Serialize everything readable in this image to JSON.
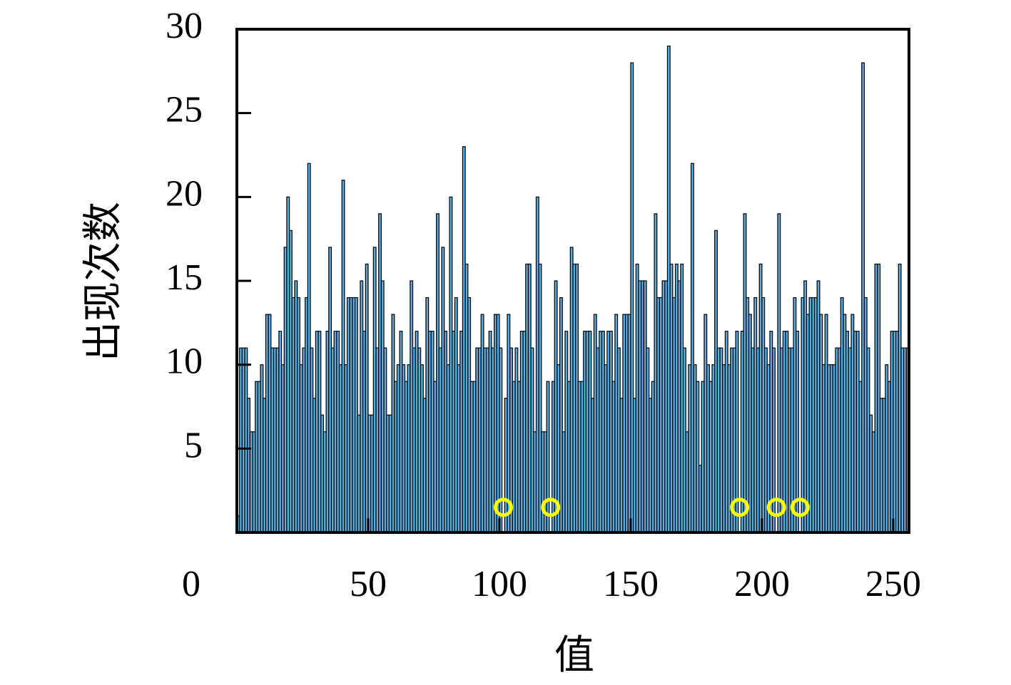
{
  "chart_data": {
    "type": "histogram",
    "x_label": "值",
    "y_label": "出现次数",
    "bins": [
      0,
      1,
      2,
      3,
      4,
      5,
      6,
      7,
      8,
      9,
      10,
      11,
      12,
      13,
      14,
      15,
      16,
      17,
      18,
      19,
      20,
      21,
      22,
      23,
      24,
      25,
      26,
      27,
      28,
      29,
      30,
      31,
      32,
      33,
      34,
      35,
      36,
      37,
      38,
      39,
      40,
      41,
      42,
      43,
      44,
      45,
      46,
      47,
      48,
      49,
      50,
      51,
      52,
      53,
      54,
      55,
      56,
      57,
      58,
      59,
      60,
      61,
      62,
      63,
      64,
      65,
      66,
      67,
      68,
      69,
      70,
      71,
      72,
      73,
      74,
      75,
      76,
      77,
      78,
      79,
      80,
      81,
      82,
      83,
      84,
      85,
      86,
      87,
      88,
      89,
      90,
      91,
      92,
      93,
      94,
      95,
      96,
      97,
      98,
      99,
      100,
      101,
      102,
      103,
      104,
      105,
      106,
      107,
      108,
      109,
      110,
      111,
      112,
      113,
      114,
      115,
      116,
      117,
      118,
      119,
      120,
      121,
      122,
      123,
      124,
      125,
      126,
      127,
      128,
      129,
      130,
      131,
      132,
      133,
      134,
      135,
      136,
      137,
      138,
      139,
      140,
      141,
      142,
      143,
      144,
      145,
      146,
      147,
      148,
      149,
      150,
      151,
      152,
      153,
      154,
      155,
      156,
      157,
      158,
      159,
      160,
      161,
      162,
      163,
      164,
      165,
      166,
      167,
      168,
      169,
      170,
      171,
      172,
      173,
      174,
      175,
      176,
      177,
      178,
      179,
      180,
      181,
      182,
      183,
      184,
      185,
      186,
      187,
      188,
      189,
      190,
      191,
      192,
      193,
      194,
      195,
      196,
      197,
      198,
      199,
      200,
      201,
      202,
      203,
      204,
      205,
      206,
      207,
      208,
      209,
      210,
      211,
      212,
      213,
      214,
      215,
      216,
      217,
      218,
      219,
      220,
      221,
      222,
      223,
      224,
      225,
      226,
      227,
      228,
      229,
      230,
      231,
      232,
      233,
      234,
      235,
      236,
      237,
      238,
      239,
      240,
      241,
      242,
      243,
      244,
      245,
      246,
      247,
      248,
      249,
      250,
      251,
      252,
      253,
      254,
      255,
      256
    ],
    "values": [
      1,
      11,
      11,
      11,
      8,
      6,
      6,
      9,
      9,
      10,
      8,
      13,
      13,
      11,
      11,
      11,
      12,
      10,
      17,
      20,
      18,
      14,
      15,
      14,
      10,
      11,
      14,
      22,
      11,
      8,
      12,
      12,
      7,
      6,
      12,
      17,
      11,
      12,
      12,
      10,
      21,
      10,
      14,
      14,
      14,
      14,
      7,
      15,
      12,
      16,
      7,
      7,
      17,
      11,
      19,
      15,
      11,
      7,
      7,
      13,
      9,
      10,
      12,
      10,
      9,
      10,
      15,
      11,
      12,
      11,
      10,
      8,
      14,
      12,
      12,
      9,
      19,
      11,
      17,
      12,
      10,
      20,
      12,
      14,
      10,
      12,
      23,
      16,
      14,
      9,
      9,
      11,
      11,
      13,
      11,
      11,
      12,
      11,
      13,
      13,
      11,
      0,
      8,
      13,
      11,
      9,
      11,
      9,
      12,
      12,
      16,
      16,
      11,
      6,
      20,
      16,
      6,
      6,
      9,
      0,
      9,
      15,
      10,
      14,
      6,
      12,
      9,
      17,
      16,
      16,
      9,
      9,
      12,
      12,
      12,
      8,
      13,
      11,
      12,
      12,
      10,
      12,
      12,
      9,
      13,
      11,
      8,
      13,
      13,
      13,
      28,
      8,
      16,
      15,
      15,
      15,
      11,
      8,
      9,
      19,
      14,
      14,
      15,
      15,
      29,
      16,
      14,
      16,
      15,
      16,
      11,
      6,
      10,
      22,
      10,
      9,
      4,
      9,
      13,
      10,
      9,
      10,
      18,
      11,
      11,
      10,
      12,
      10,
      11,
      11,
      12,
      0,
      12,
      19,
      14,
      13,
      11,
      14,
      11,
      16,
      14,
      11,
      10,
      12,
      11,
      0,
      19,
      11,
      12,
      12,
      11,
      11,
      14,
      12,
      0,
      14,
      15,
      13,
      14,
      14,
      14,
      15,
      13,
      10,
      13,
      10,
      10,
      10,
      11,
      11,
      14,
      13,
      12,
      11,
      13,
      12,
      12,
      9,
      28,
      14,
      11,
      7,
      6,
      16,
      16,
      8,
      8,
      10,
      9,
      12,
      12,
      12,
      16,
      11,
      11,
      11
    ],
    "color": "#5aaee0",
    "highlights": {
      "x": [
        101.5,
        119.5,
        191.5,
        205.5,
        214.5
      ],
      "y": [
        1.5,
        1.5,
        1.5,
        1.5,
        1.5
      ],
      "color": "#ffff00"
    },
    "xlim": [
      0,
      256
    ],
    "xticks": [
      0,
      50,
      100,
      150,
      200,
      250
    ],
    "ylim": [
      0,
      30
    ],
    "yticks": [
      5,
      10,
      15,
      20,
      25,
      30
    ]
  }
}
